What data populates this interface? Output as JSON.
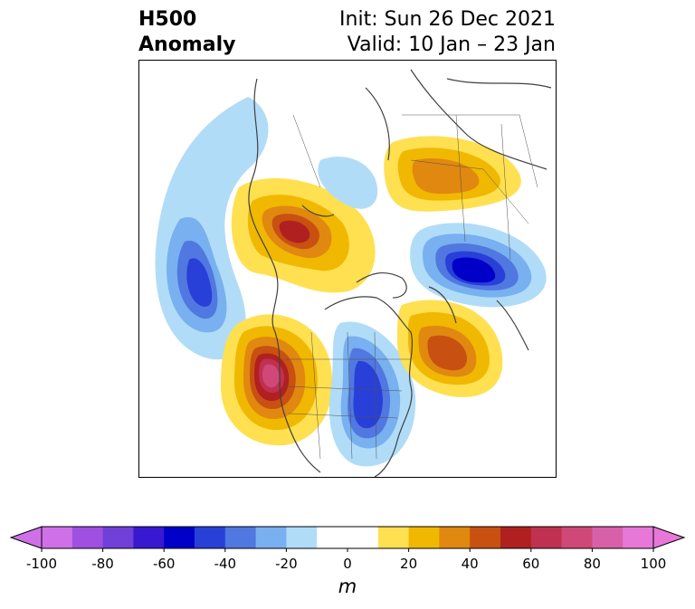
{
  "title": {
    "left_line1": "H500",
    "left_line2": "Anomaly",
    "right_line1": "Init: Sun 26 Dec 2021",
    "right_line2": "Valid: 10 Jan – 23 Jan"
  },
  "colorbar": {
    "unit": "m",
    "ticks": [
      "-100",
      "-80",
      "-60",
      "-40",
      "-20",
      "0",
      "20",
      "40",
      "60",
      "80",
      "100"
    ],
    "colors": [
      "#d070e8",
      "#a050e0",
      "#7040d8",
      "#3818d0",
      "#0000c8",
      "#2840d8",
      "#5078e0",
      "#78b0f0",
      "#b0dcf8",
      "#ffffff",
      "#ffffff",
      "#ffe050",
      "#f0b800",
      "#e08810",
      "#c85010",
      "#b02020",
      "#c03050",
      "#d04878",
      "#d860a8",
      "#e878d8"
    ]
  },
  "map": {
    "region": "North America and Arctic (polar stereographic)",
    "anomalies": [
      {
        "label": "negative-pacific",
        "peak_m": -55
      },
      {
        "label": "positive-alaska-sib",
        "peak_m": 60
      },
      {
        "label": "positive-western-us",
        "peak_m": 75
      },
      {
        "label": "negative-eastern-us",
        "peak_m": -55
      },
      {
        "label": "positive-atlantic",
        "peak_m": 45
      },
      {
        "label": "positive-scandinavia",
        "peak_m": 30
      },
      {
        "label": "negative-greenland-sea",
        "peak_m": -60
      },
      {
        "label": "negative-arctic-small",
        "peak_m": -15
      }
    ]
  }
}
